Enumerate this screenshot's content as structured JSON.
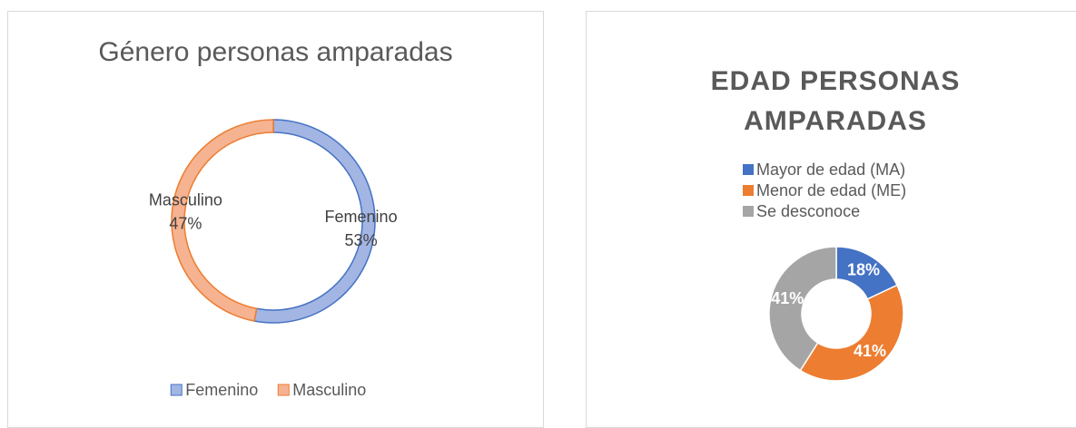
{
  "chart_data": [
    {
      "type": "donut",
      "title": "Género personas amparadas",
      "categories": [
        "Femenino",
        "Masculino"
      ],
      "values": [
        53,
        47
      ],
      "value_labels": [
        "53%",
        "47%"
      ],
      "colors": [
        "#a3b5e3",
        "#f6b391"
      ],
      "edge_colors": [
        "#4472c4",
        "#ed7d31"
      ],
      "legend": "bottom",
      "label_style": "outside-name"
    },
    {
      "type": "donut",
      "title": "EDAD PERSONAS AMPARADAS",
      "categories": [
        "Mayor de edad (MA)",
        "Menor de edad (ME)",
        "Se desconoce"
      ],
      "values": [
        18,
        41,
        41
      ],
      "value_labels": [
        "18%",
        "41%",
        "41%"
      ],
      "colors": [
        "#4472c4",
        "#ed7d31",
        "#a5a5a5"
      ],
      "edge_colors": [
        "#ffffff",
        "#ffffff",
        "#ffffff"
      ],
      "legend": "top",
      "label_style": "inside-value"
    }
  ]
}
